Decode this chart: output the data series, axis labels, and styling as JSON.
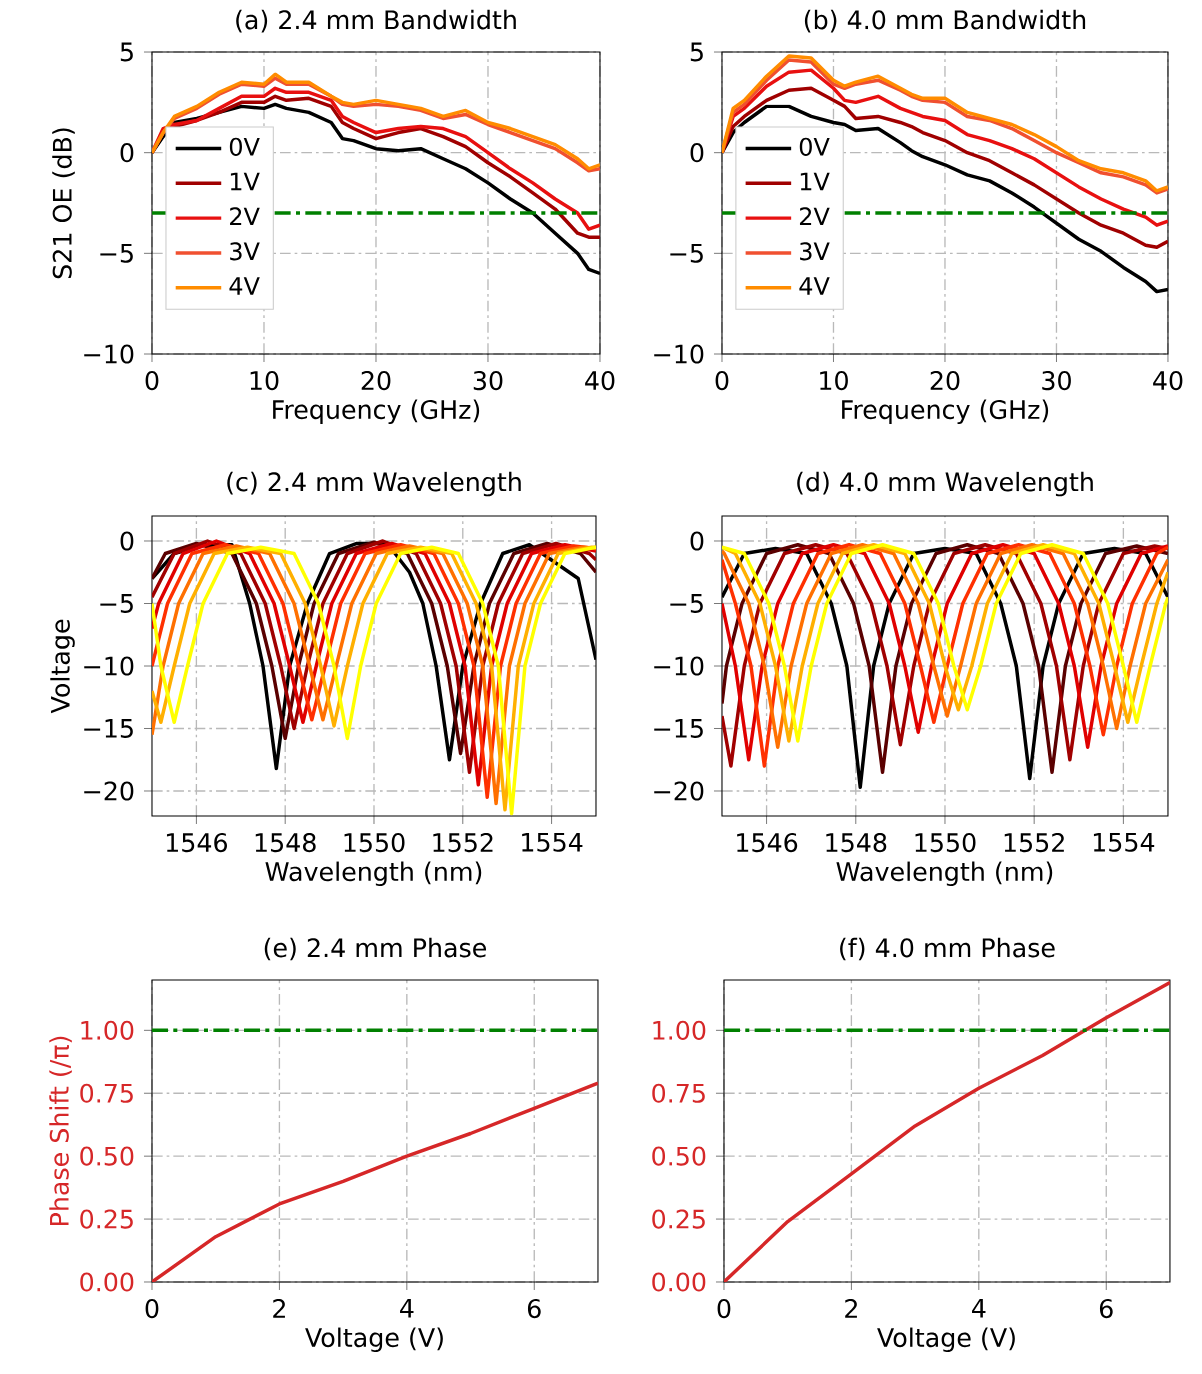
{
  "chart_data": [
    {
      "type": "line",
      "title": "(a) 2.4 mm Bandwidth",
      "xlabel": "Frequency (GHz)",
      "ylabel": "S21 OE (dB)",
      "xlim": [
        0,
        40
      ],
      "ylim": [
        -10,
        5
      ],
      "xticks": [
        0,
        10,
        20,
        30,
        40
      ],
      "yticks": [
        {
          "value": -10,
          "label": "−10"
        },
        {
          "value": -5,
          "label": "−5"
        },
        0,
        5
      ],
      "grid": true,
      "legend": "center left",
      "x": [
        0,
        1,
        2,
        4,
        6,
        8,
        10,
        11,
        12,
        14,
        16,
        17,
        18,
        20,
        22,
        24,
        26,
        28,
        30,
        32,
        34,
        36,
        38,
        39,
        40
      ],
      "series": [
        {
          "name": "0V",
          "color": "#000000",
          "values": [
            0,
            0.8,
            1.5,
            1.7,
            2.0,
            2.3,
            2.2,
            2.4,
            2.2,
            2.0,
            1.5,
            0.7,
            0.6,
            0.2,
            0.1,
            0.2,
            -0.3,
            -0.8,
            -1.5,
            -2.3,
            -3.0,
            -4.0,
            -5.0,
            -5.8,
            -6.0
          ]
        },
        {
          "name": "1V",
          "color": "#a00000",
          "values": [
            0,
            1.0,
            1.3,
            1.6,
            2.0,
            2.5,
            2.5,
            2.8,
            2.6,
            2.7,
            2.3,
            1.5,
            1.2,
            0.7,
            1.0,
            1.2,
            0.8,
            0.3,
            -0.5,
            -1.2,
            -2.0,
            -2.8,
            -4.0,
            -4.2,
            -4.2
          ]
        },
        {
          "name": "2V",
          "color": "#e81010",
          "values": [
            0,
            1.2,
            1.4,
            1.6,
            2.2,
            2.8,
            2.8,
            3.2,
            3.0,
            3.0,
            2.6,
            1.8,
            1.5,
            1.0,
            1.2,
            1.3,
            1.2,
            0.8,
            0.0,
            -0.8,
            -1.5,
            -2.3,
            -3.0,
            -3.8,
            -3.6
          ]
        },
        {
          "name": "3V",
          "color": "#f05030",
          "values": [
            0,
            1.0,
            1.7,
            2.2,
            2.9,
            3.4,
            3.3,
            3.7,
            3.4,
            3.4,
            2.8,
            2.4,
            2.3,
            2.4,
            2.3,
            2.1,
            1.7,
            1.9,
            1.4,
            1.0,
            0.6,
            0.2,
            -0.5,
            -0.9,
            -0.8
          ]
        },
        {
          "name": "4V",
          "color": "#ff8c00",
          "values": [
            0,
            1.0,
            1.8,
            2.3,
            3.0,
            3.5,
            3.4,
            3.9,
            3.5,
            3.5,
            2.8,
            2.5,
            2.4,
            2.6,
            2.4,
            2.2,
            1.8,
            2.1,
            1.5,
            1.2,
            0.8,
            0.4,
            -0.3,
            -0.8,
            -0.6
          ]
        }
      ],
      "ref_lines": [
        {
          "axis": "y",
          "value": -3,
          "color": "#008000",
          "line_style": "dashdot"
        }
      ]
    },
    {
      "type": "line",
      "title": "(b) 4.0 mm Bandwidth",
      "xlabel": "Frequency (GHz)",
      "xlim": [
        0,
        40
      ],
      "ylim": [
        -10,
        5
      ],
      "xticks": [
        0,
        10,
        20,
        30,
        40
      ],
      "yticks": [
        {
          "value": -10,
          "label": "−10"
        },
        {
          "value": -5,
          "label": "−5"
        },
        0,
        5
      ],
      "grid": true,
      "legend": "center left",
      "x": [
        0,
        1,
        2,
        4,
        6,
        8,
        10,
        11,
        12,
        14,
        16,
        17,
        18,
        20,
        22,
        24,
        26,
        28,
        30,
        32,
        34,
        36,
        38,
        39,
        40
      ],
      "series": [
        {
          "name": "0V",
          "color": "#000000",
          "values": [
            0,
            1.0,
            1.5,
            2.3,
            2.3,
            1.8,
            1.5,
            1.4,
            1.1,
            1.2,
            0.5,
            0.1,
            -0.2,
            -0.6,
            -1.1,
            -1.4,
            -2.0,
            -2.7,
            -3.5,
            -4.3,
            -4.9,
            -5.7,
            -6.4,
            -6.9,
            -6.8
          ]
        },
        {
          "name": "1V",
          "color": "#a00000",
          "values": [
            0,
            1.3,
            1.8,
            2.6,
            3.1,
            3.2,
            2.6,
            2.3,
            1.7,
            1.8,
            1.5,
            1.3,
            1.0,
            0.6,
            0.0,
            -0.4,
            -1.0,
            -1.6,
            -2.3,
            -3.0,
            -3.6,
            -4.0,
            -4.6,
            -4.7,
            -4.4
          ]
        },
        {
          "name": "2V",
          "color": "#e81010",
          "values": [
            0,
            1.8,
            2.2,
            3.3,
            4.0,
            4.1,
            3.2,
            2.6,
            2.5,
            2.8,
            2.2,
            2.0,
            1.8,
            1.6,
            0.9,
            0.6,
            0.2,
            -0.3,
            -1.0,
            -1.7,
            -2.3,
            -2.8,
            -3.2,
            -3.6,
            -3.4
          ]
        },
        {
          "name": "3V",
          "color": "#f05030",
          "values": [
            0,
            2.0,
            2.4,
            3.6,
            4.6,
            4.5,
            3.4,
            3.2,
            3.4,
            3.6,
            3.1,
            2.8,
            2.6,
            2.5,
            1.8,
            1.6,
            1.2,
            0.6,
            0.0,
            -0.5,
            -1.0,
            -1.2,
            -1.6,
            -2.0,
            -1.8
          ]
        },
        {
          "name": "4V",
          "color": "#ff8c00",
          "values": [
            0,
            2.2,
            2.6,
            3.8,
            4.8,
            4.7,
            3.6,
            3.3,
            3.5,
            3.8,
            3.2,
            2.9,
            2.7,
            2.7,
            2.0,
            1.7,
            1.4,
            0.9,
            0.3,
            -0.4,
            -0.8,
            -1.0,
            -1.4,
            -1.9,
            -1.7
          ]
        }
      ],
      "ref_lines": [
        {
          "axis": "y",
          "value": -3,
          "color": "#008000",
          "line_style": "dashdot"
        }
      ]
    },
    {
      "type": "line",
      "title": "(c) 2.4 mm Wavelength",
      "xlabel": "Wavelength (nm)",
      "ylabel": "Voltage",
      "xlim": [
        1545,
        1555
      ],
      "ylim": [
        -22,
        2
      ],
      "xticks": [
        1546,
        1548,
        1550,
        1552,
        1554
      ],
      "yticks": [
        {
          "value": -20,
          "label": "−20"
        },
        {
          "value": -15,
          "label": "−15"
        },
        {
          "value": -10,
          "label": "−10"
        },
        {
          "value": -5,
          "label": "−5"
        },
        0
      ],
      "grid": true,
      "series": [
        {
          "color": "#000000",
          "x": [
            1545,
            1545.5,
            1546.2,
            1546.8,
            1547.2,
            1547.5,
            1547.8,
            1548.1,
            1548.5,
            1549.0,
            1549.6,
            1550.3,
            1550.8,
            1551.1,
            1551.4,
            1551.7,
            1552.0,
            1552.4,
            1552.9,
            1553.5,
            1554.6,
            1555.0
          ],
          "values": [
            -3,
            -1,
            -0.3,
            -0.3,
            -5,
            -10,
            -18.2,
            -10,
            -5,
            -1,
            -0.2,
            -0.2,
            -2.5,
            -5,
            -10,
            -17.5,
            -10,
            -5,
            -1,
            -0.3,
            -3,
            -9.5
          ]
        },
        {
          "color": "#5a0000",
          "x": [
            1545,
            1545.3,
            1546.0,
            1546.8,
            1547.35,
            1547.7,
            1548.0,
            1548.3,
            1548.65,
            1549.2,
            1550.0,
            1550.75,
            1551.3,
            1551.65,
            1551.95,
            1552.25,
            1552.6,
            1553.15,
            1553.9,
            1554.65,
            1555.0
          ],
          "values": [
            -3,
            -1,
            -0.2,
            -1,
            -5,
            -10,
            -15.8,
            -10,
            -5,
            -1,
            -0.1,
            -1,
            -5,
            -10,
            -17,
            -10,
            -5,
            -1,
            -0.2,
            -1,
            -2.5
          ]
        },
        {
          "color": "#a00000",
          "x": [
            1545,
            1545.5,
            1546.25,
            1547.0,
            1547.55,
            1547.9,
            1548.2,
            1548.5,
            1548.85,
            1549.4,
            1550.2,
            1550.95,
            1551.5,
            1551.85,
            1552.15,
            1552.45,
            1552.8,
            1553.35,
            1554.1,
            1554.85,
            1555
          ],
          "values": [
            -4.5,
            -1,
            0,
            -1,
            -5,
            -10,
            -15,
            -10,
            -5,
            -1,
            0,
            -1,
            -5,
            -10,
            -18.5,
            -10,
            -5,
            -1,
            -0.2,
            -1,
            -1.5
          ]
        },
        {
          "color": "#e00000",
          "x": [
            1545,
            1545.15,
            1545.7,
            1546.45,
            1547.2,
            1547.75,
            1548.1,
            1548.4,
            1548.7,
            1549.05,
            1549.6,
            1550.4,
            1551.15,
            1551.7,
            1552.05,
            1552.35,
            1552.65,
            1553.0,
            1553.55,
            1554.3,
            1555
          ],
          "values": [
            -7,
            -5,
            -1,
            0,
            -1,
            -5,
            -10,
            -14.5,
            -10,
            -5,
            -1,
            -0.2,
            -1,
            -5,
            -10,
            -19.5,
            -10,
            -5,
            -1,
            -0.3,
            -0.8
          ]
        },
        {
          "color": "#ff3000",
          "x": [
            1545,
            1545.35,
            1545.9,
            1546.65,
            1547.4,
            1547.95,
            1548.3,
            1548.6,
            1548.9,
            1549.25,
            1549.8,
            1550.6,
            1551.35,
            1551.9,
            1552.25,
            1552.55,
            1552.85,
            1553.2,
            1553.75,
            1554.5,
            1555
          ],
          "values": [
            -10,
            -5,
            -1,
            -0.3,
            -1,
            -5,
            -10,
            -14.3,
            -10,
            -5,
            -1,
            -0.3,
            -1,
            -5,
            -10,
            -20.5,
            -10,
            -5,
            -1,
            -0.4,
            -0.6
          ]
        },
        {
          "color": "#ff7000",
          "x": [
            1545,
            1545.25,
            1545.6,
            1546.15,
            1546.9,
            1547.65,
            1548.2,
            1548.55,
            1548.85,
            1549.15,
            1549.5,
            1550.05,
            1550.8,
            1551.55,
            1552.1,
            1552.45,
            1552.75,
            1553.05,
            1553.4,
            1553.95,
            1554.7,
            1555
          ],
          "values": [
            -15.5,
            -10,
            -5,
            -1,
            -0.4,
            -1,
            -5,
            -10,
            -14.3,
            -10,
            -5,
            -1,
            -0.4,
            -1,
            -5,
            -10,
            -21,
            -10,
            -5,
            -1,
            -0.5,
            -0.6
          ]
        },
        {
          "color": "#ffb000",
          "x": [
            1545,
            1545.2,
            1545.5,
            1545.85,
            1546.4,
            1547.15,
            1547.9,
            1548.45,
            1548.8,
            1549.1,
            1549.4,
            1549.75,
            1550.3,
            1551.05,
            1551.75,
            1552.3,
            1552.65,
            1552.95,
            1553.25,
            1553.6,
            1554.15,
            1554.9,
            1555
          ],
          "values": [
            -12,
            -14.5,
            -10,
            -5,
            -1,
            -0.5,
            -1,
            -5,
            -10,
            -14.8,
            -10,
            -5,
            -1,
            -0.5,
            -1,
            -5,
            -10,
            -21.5,
            -10,
            -5,
            -1,
            -0.5,
            -0.5
          ]
        },
        {
          "color": "#ffff00",
          "x": [
            1545,
            1545.2,
            1545.5,
            1545.8,
            1546.15,
            1546.7,
            1547.45,
            1548.2,
            1548.75,
            1549.1,
            1549.4,
            1549.7,
            1550.05,
            1550.6,
            1551.3,
            1551.9,
            1552.45,
            1552.8,
            1553.1,
            1553.4,
            1553.75,
            1554.3,
            1555
          ],
          "values": [
            -5,
            -10,
            -14.5,
            -10,
            -5,
            -1,
            -0.5,
            -1,
            -5,
            -10,
            -15.8,
            -10,
            -5,
            -1,
            -0.5,
            -1,
            -5,
            -10,
            -21.8,
            -10,
            -5,
            -1,
            -0.5
          ]
        }
      ]
    },
    {
      "type": "line",
      "title": "(d) 4.0 mm Wavelength",
      "xlabel": "Wavelength (nm)",
      "xlim": [
        1545,
        1555
      ],
      "ylim": [
        -22,
        2
      ],
      "xticks": [
        1546,
        1548,
        1550,
        1552,
        1554
      ],
      "yticks": [
        {
          "value": -20,
          "label": "−20"
        },
        {
          "value": -15,
          "label": "−15"
        },
        {
          "value": -10,
          "label": "−10"
        },
        {
          "value": -5,
          "label": "−5"
        },
        0
      ],
      "grid": true,
      "series": [
        {
          "color": "#000000",
          "x": [
            1545,
            1545.5,
            1546.2,
            1546.9,
            1547.45,
            1547.8,
            1548.1,
            1548.4,
            1548.75,
            1549.3,
            1550.0,
            1550.7,
            1551.25,
            1551.6,
            1551.9,
            1552.2,
            1552.55,
            1553.1,
            1553.8,
            1554.5,
            1555
          ],
          "values": [
            -4.5,
            -1,
            -0.6,
            -1,
            -5,
            -10,
            -19.7,
            -10,
            -5,
            -1,
            -0.6,
            -1,
            -5,
            -10,
            -19,
            -10,
            -5,
            -1,
            -0.6,
            -1,
            -4.5
          ]
        },
        {
          "color": "#5a0000",
          "x": [
            1545,
            1545.1,
            1545.45,
            1546.0,
            1546.7,
            1547.4,
            1547.95,
            1548.3,
            1548.6,
            1548.9,
            1549.25,
            1549.8,
            1550.5,
            1551.2,
            1551.75,
            1552.1,
            1552.4,
            1552.7,
            1553.05,
            1553.6,
            1554.3,
            1555
          ],
          "values": [
            -13,
            -10,
            -5,
            -1,
            -0.3,
            -1,
            -5,
            -10,
            -18.5,
            -10,
            -5,
            -1,
            -0.3,
            -1,
            -5,
            -10,
            -18.5,
            -10,
            -5,
            -1,
            -0.4,
            -1
          ]
        },
        {
          "color": "#a00000",
          "x": [
            1545,
            1545.2,
            1545.5,
            1545.85,
            1546.4,
            1547.1,
            1547.8,
            1548.35,
            1548.7,
            1549.0,
            1549.3,
            1549.65,
            1550.2,
            1550.9,
            1551.6,
            1552.15,
            1552.5,
            1552.8,
            1553.1,
            1553.45,
            1554.0,
            1554.7,
            1555
          ],
          "values": [
            -14,
            -18,
            -10,
            -5,
            -1,
            -0.3,
            -1,
            -5,
            -10,
            -16.3,
            -10,
            -5,
            -1,
            -0.3,
            -1,
            -5,
            -10,
            -17.5,
            -10,
            -5,
            -1,
            -0.4,
            -0.6
          ]
        },
        {
          "color": "#e00000",
          "x": [
            1545,
            1545.3,
            1545.6,
            1545.9,
            1546.25,
            1546.8,
            1547.5,
            1548.2,
            1548.75,
            1549.1,
            1549.4,
            1549.7,
            1550.05,
            1550.6,
            1551.3,
            1552.0,
            1552.55,
            1552.9,
            1553.2,
            1553.5,
            1553.85,
            1554.4,
            1555
          ],
          "values": [
            -5,
            -10,
            -17.5,
            -10,
            -5,
            -1,
            -0.3,
            -1,
            -5,
            -10,
            -15.3,
            -10,
            -5,
            -1,
            -0.3,
            -1,
            -5,
            -10,
            -16.5,
            -10,
            -5,
            -1,
            -0.4
          ]
        },
        {
          "color": "#ff3000",
          "x": [
            1545,
            1545.3,
            1545.65,
            1545.95,
            1546.25,
            1546.6,
            1547.15,
            1547.85,
            1548.55,
            1549.1,
            1549.45,
            1549.75,
            1550.05,
            1550.4,
            1550.95,
            1551.65,
            1552.35,
            1552.9,
            1553.25,
            1553.55,
            1553.85,
            1554.2,
            1554.75,
            1555
          ],
          "values": [
            -1.5,
            -5,
            -10,
            -18,
            -10,
            -5,
            -1,
            -0.3,
            -1,
            -5,
            -10,
            -14.5,
            -10,
            -5,
            -1,
            -0.3,
            -1,
            -5,
            -10,
            -15.5,
            -10,
            -5,
            -1,
            -0.5
          ]
        },
        {
          "color": "#ff7000",
          "x": [
            1545,
            1545.05,
            1545.6,
            1545.95,
            1546.25,
            1546.55,
            1546.9,
            1547.45,
            1548.15,
            1548.85,
            1549.4,
            1549.75,
            1550.05,
            1550.35,
            1550.7,
            1551.25,
            1551.95,
            1552.65,
            1553.2,
            1553.55,
            1553.85,
            1554.15,
            1554.5,
            1555
          ],
          "values": [
            -0.8,
            -1,
            -5,
            -10,
            -16.5,
            -10,
            -5,
            -1,
            -0.3,
            -1,
            -5,
            -10,
            -14,
            -10,
            -5,
            -1,
            -0.3,
            -1,
            -5,
            -10,
            -15,
            -10,
            -5,
            -1.5
          ]
        },
        {
          "color": "#ffb000",
          "x": [
            1545,
            1545.3,
            1545.85,
            1546.2,
            1546.5,
            1546.8,
            1547.15,
            1547.7,
            1548.4,
            1549.1,
            1549.65,
            1550.0,
            1550.3,
            1550.6,
            1550.95,
            1551.5,
            1552.2,
            1552.9,
            1553.45,
            1553.8,
            1554.1,
            1554.4,
            1554.75,
            1555
          ],
          "values": [
            -0.5,
            -1,
            -5,
            -10,
            -16,
            -10,
            -5,
            -1,
            -0.3,
            -1,
            -5,
            -10,
            -13.5,
            -10,
            -5,
            -1,
            -0.3,
            -1,
            -5,
            -10,
            -14.5,
            -10,
            -5,
            -2.5
          ]
        },
        {
          "color": "#ffff00",
          "x": [
            1545,
            1545.5,
            1546.05,
            1546.4,
            1546.7,
            1547.0,
            1547.35,
            1547.9,
            1548.6,
            1549.3,
            1549.85,
            1550.2,
            1550.5,
            1550.8,
            1551.15,
            1551.7,
            1552.4,
            1553.1,
            1553.65,
            1554.0,
            1554.3,
            1554.6,
            1554.95,
            1555
          ],
          "values": [
            -0.5,
            -1,
            -5,
            -10,
            -16,
            -10,
            -5,
            -1,
            -0.3,
            -1,
            -5,
            -10,
            -13.5,
            -10,
            -5,
            -1,
            -0.3,
            -1,
            -5,
            -10,
            -14.5,
            -10,
            -5,
            -4.5
          ]
        }
      ]
    },
    {
      "type": "line",
      "title": "(e) 2.4 mm Phase",
      "xlabel": "Voltage (V)",
      "ylabel": "Phase Shift (/π)",
      "xlim": [
        0,
        7
      ],
      "ylim": [
        0,
        1.2
      ],
      "xticks": [
        0,
        2,
        4,
        6
      ],
      "yticks": [
        {
          "value": 0,
          "label": "0.00"
        },
        {
          "value": 0.25,
          "label": "0.25"
        },
        {
          "value": 0.5,
          "label": "0.50"
        },
        {
          "value": 0.75,
          "label": "0.75"
        },
        {
          "value": 1,
          "label": "1.00"
        }
      ],
      "grid": true,
      "x": [
        0,
        1,
        2,
        3,
        4,
        5,
        6,
        7
      ],
      "series": [
        {
          "color": "#d62728",
          "values": [
            0,
            0.18,
            0.31,
            0.4,
            0.5,
            0.59,
            0.69,
            0.79
          ]
        }
      ],
      "ref_lines": [
        {
          "axis": "y",
          "value": 1,
          "color": "#008000",
          "line_style": "dashdot"
        }
      ]
    },
    {
      "type": "line",
      "title": "(f) 4.0 mm Phase",
      "xlabel": "Voltage (V)",
      "xlim": [
        0,
        7
      ],
      "ylim": [
        0,
        1.2
      ],
      "xticks": [
        0,
        2,
        4,
        6
      ],
      "yticks": [
        {
          "value": 0,
          "label": "0.00"
        },
        {
          "value": 0.25,
          "label": "0.25"
        },
        {
          "value": 0.5,
          "label": "0.50"
        },
        {
          "value": 0.75,
          "label": "0.75"
        },
        {
          "value": 1,
          "label": "1.00"
        }
      ],
      "grid": true,
      "x": [
        0,
        1,
        2,
        3,
        4,
        5,
        6,
        7
      ],
      "series": [
        {
          "color": "#d62728",
          "values": [
            0,
            0.24,
            0.43,
            0.62,
            0.77,
            0.9,
            1.05,
            1.19
          ]
        }
      ],
      "ref_lines": [
        {
          "axis": "y",
          "value": 1,
          "color": "#008000",
          "line_style": "dashdot"
        }
      ]
    }
  ]
}
